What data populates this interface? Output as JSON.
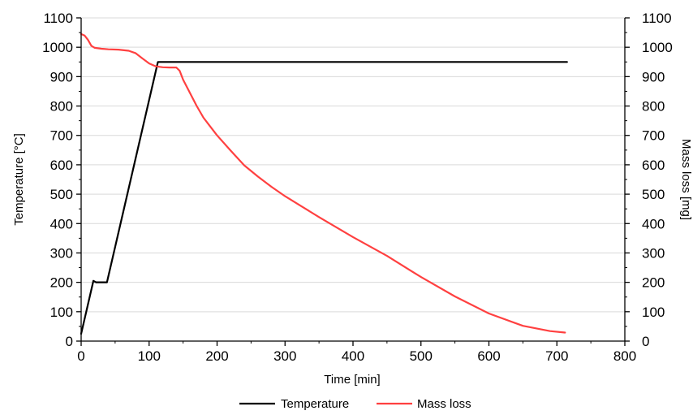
{
  "chart_data": {
    "type": "line",
    "title": "",
    "xlabel": "Time [min]",
    "ylabel_left": "Temperature [°C]",
    "ylabel_right": "Mass loss [mg]",
    "xlim": [
      0,
      800
    ],
    "ylim_left": [
      0,
      1100
    ],
    "ylim_right": [
      0,
      1100
    ],
    "x_ticks": [
      0,
      100,
      200,
      300,
      400,
      500,
      600,
      700,
      800
    ],
    "y_ticks": [
      0,
      100,
      200,
      300,
      400,
      500,
      600,
      700,
      800,
      900,
      1000,
      1100
    ],
    "grid": true,
    "legend_position": "bottom-center",
    "series": [
      {
        "name": "Temperature",
        "axis": "left",
        "color": "#000000",
        "x": [
          0,
          18,
          22,
          38,
          113,
          715
        ],
        "y": [
          25,
          205,
          200,
          200,
          950,
          950
        ]
      },
      {
        "name": "Mass loss",
        "axis": "right",
        "color": "#ff4040",
        "x": [
          0,
          5,
          10,
          15,
          20,
          30,
          40,
          55,
          70,
          80,
          90,
          100,
          110,
          120,
          130,
          140,
          145,
          150,
          160,
          170,
          180,
          200,
          220,
          240,
          260,
          280,
          300,
          350,
          400,
          450,
          500,
          550,
          600,
          650,
          690,
          712
        ],
        "y": [
          1045,
          1040,
          1025,
          1005,
          998,
          995,
          993,
          992,
          988,
          980,
          962,
          945,
          935,
          932,
          931,
          931,
          920,
          890,
          845,
          800,
          760,
          700,
          648,
          598,
          560,
          525,
          493,
          422,
          354,
          290,
          218,
          152,
          94,
          52,
          34,
          29
        ]
      }
    ]
  }
}
